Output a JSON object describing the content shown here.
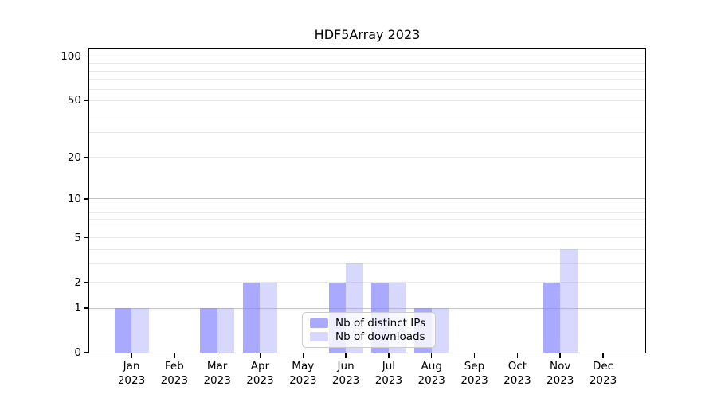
{
  "chart_data": {
    "type": "bar",
    "title": "HDF5Array 2023",
    "categories": [
      "Jan 2023",
      "Feb 2023",
      "Mar 2023",
      "Apr 2023",
      "May 2023",
      "Jun 2023",
      "Jul 2023",
      "Aug 2023",
      "Sep 2023",
      "Oct 2023",
      "Nov 2023",
      "Dec 2023"
    ],
    "series": [
      {
        "name": "Nb of distinct IPs",
        "color": "#8888FFB8",
        "values": [
          1,
          0,
          1,
          2,
          0,
          2,
          2,
          1,
          0,
          0,
          2,
          0
        ]
      },
      {
        "name": "Nb of downloads",
        "color": "#8888FF54",
        "values": [
          1,
          0,
          1,
          2,
          0,
          3,
          2,
          1,
          0,
          0,
          4,
          0
        ]
      }
    ],
    "xlabel": "",
    "ylabel": "",
    "yscale": "log1p",
    "ylim": [
      0,
      114
    ],
    "yticks": [
      0,
      1,
      2,
      5,
      10,
      20,
      50,
      100
    ],
    "gridlines": {
      "emphasized": [
        1,
        10,
        100
      ],
      "light": [
        2,
        3,
        4,
        5,
        6,
        7,
        8,
        9,
        20,
        30,
        40,
        50,
        60,
        70,
        80,
        90
      ]
    },
    "grid": "on",
    "legend_position": "inside-bottom-center"
  },
  "colors": {
    "background": "#ffffff",
    "axis_frame": "#000000",
    "grid_emphasized": "#c3c3c3",
    "grid_light": "#e9e9e9",
    "legend_border": "#cccccc",
    "text": "#000000"
  }
}
